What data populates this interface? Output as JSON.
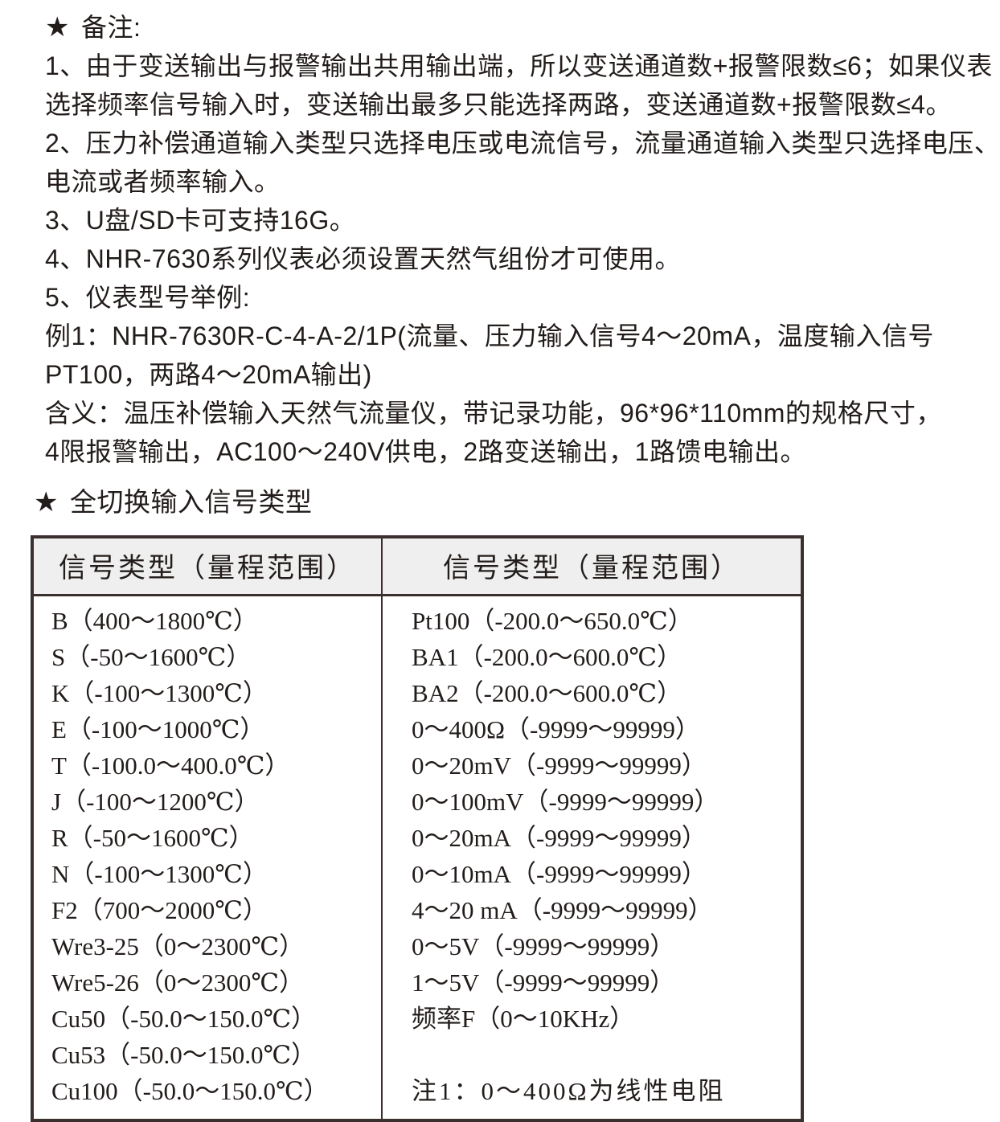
{
  "colors": {
    "ink": "#221c1a",
    "table_border": "#3a302d",
    "table_header_bg": "#efefef",
    "page_bg": "#ffffff"
  },
  "notes_heading": {
    "star": "★",
    "label": "备注:"
  },
  "notes": [
    "1、由于变送输出与报警输出共用输出端，所以变送通道数+报警限数≤6；如果仪表",
    "选择频率信号输入时，变送输出最多只能选择两路，变送通道数+报警限数≤4。",
    "2、压力补偿通道输入类型只选择电压或电流信号，流量通道输入类型只选择电压、",
    "电流或者频率输入。",
    "3、U盘/SD卡可支持16G。",
    "4、NHR-7630系列仪表必须设置天然气组份才可使用。",
    "5、仪表型号举例:",
    "例1：NHR-7630R-C-4-A-2/1P(流量、压力输入信号4～20mA，温度输入信号",
    "PT100，两路4～20mA输出)",
    "含义：温压补偿输入天然气流量仪，带记录功能，96*96*110mm的规格尺寸，",
    "4限报警输出，AC100～240V供电，2路变送输出，1路馈电输出。"
  ],
  "section_heading": {
    "star": "★",
    "label": "全切换输入信号类型"
  },
  "table": {
    "headers": [
      "信号类型（量程范围）",
      "信号类型（量程范围）"
    ],
    "left_column": [
      "B（400～1800℃）",
      "S（-50～1600℃）",
      "K（-100～1300℃）",
      "E（-100～1000℃）",
      "T（-100.0～400.0℃）",
      "J（-100～1200℃）",
      "R（-50～1600℃）",
      "N（-100～1300℃）",
      "F2（700～2000℃）",
      "Wre3-25（0～2300℃）",
      "Wre5-26（0～2300℃）",
      "Cu50（-50.0～150.0℃）",
      "Cu53（-50.0～150.0℃）",
      "Cu100（-50.0～150.0℃）"
    ],
    "right_column": [
      "Pt100（-200.0～650.0℃）",
      "BA1（-200.0～600.0℃）",
      "BA2（-200.0～600.0℃）",
      "0～400Ω（-9999～99999）",
      "0～20mV（-9999～99999）",
      "0～100mV（-9999～99999）",
      "0～20mA（-9999～99999）",
      "0～10mA（-9999～99999）",
      "4～20 mA（-9999～99999）",
      "0～5V（-9999～99999）",
      "1～5V（-9999～99999）",
      "频率F（0～10KHz）"
    ],
    "note": "注1：0～400Ω为线性电阻"
  }
}
